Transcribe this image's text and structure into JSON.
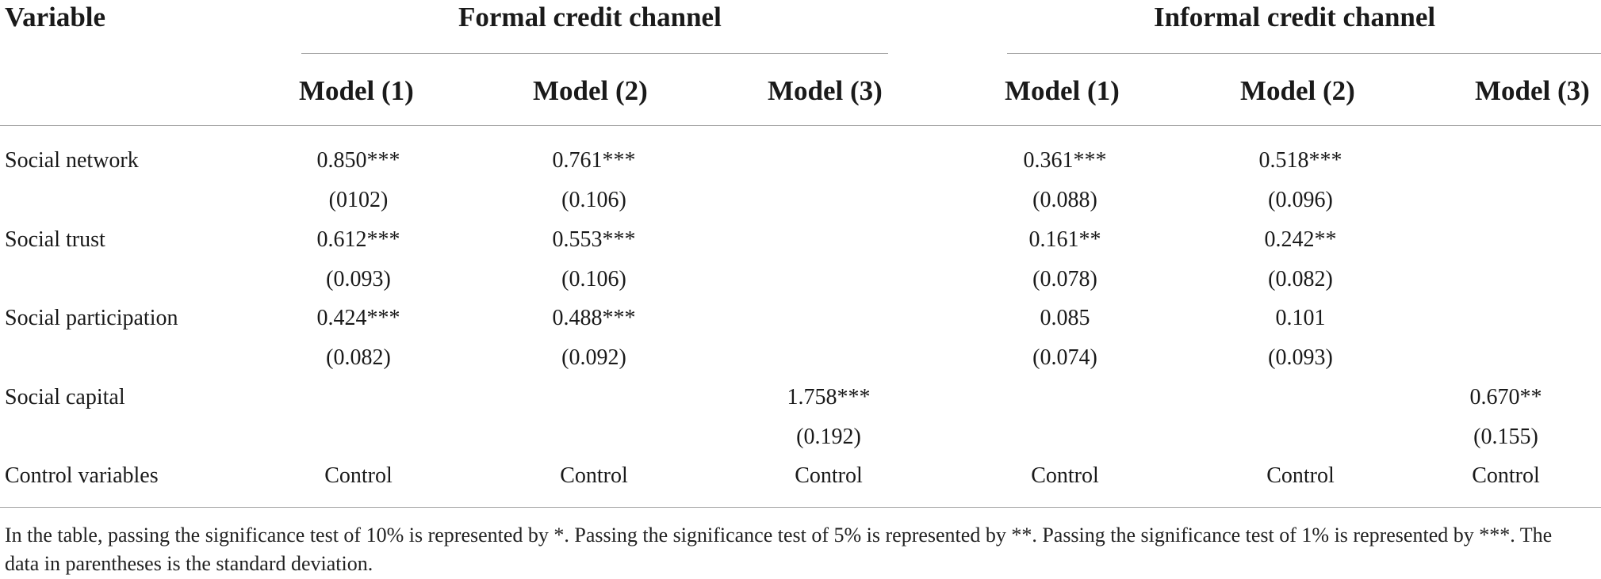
{
  "table": {
    "header": {
      "variable_label": "Variable",
      "group_formal": "Formal credit channel",
      "group_informal": "Informal credit channel",
      "models": [
        "Model (1)",
        "Model (2)",
        "Model (3)",
        "Model (1)",
        "Model (2)",
        "Model (3)"
      ]
    },
    "rows": [
      {
        "label": "Social network",
        "coef": [
          "0.850***",
          "0.761***",
          "",
          "0.361***",
          "0.518***",
          ""
        ],
        "se": [
          "(0102)",
          "(0.106)",
          "",
          "(0.088)",
          "(0.096)",
          ""
        ]
      },
      {
        "label": "Social trust",
        "coef": [
          "0.612***",
          "0.553***",
          "",
          "0.161**",
          "0.242**",
          ""
        ],
        "se": [
          "(0.093)",
          "(0.106)",
          "",
          "(0.078)",
          "(0.082)",
          ""
        ]
      },
      {
        "label": "Social participation",
        "coef": [
          "0.424***",
          "0.488***",
          "",
          "0.085",
          "0.101",
          ""
        ],
        "se": [
          "(0.082)",
          "(0.092)",
          "",
          "(0.074)",
          "(0.093)",
          ""
        ]
      },
      {
        "label": "Social capital",
        "coef": [
          "",
          "",
          "1.758***",
          "",
          "",
          "0.670**"
        ],
        "se": [
          "",
          "",
          "(0.192)",
          "",
          "",
          "(0.155)"
        ]
      }
    ],
    "control_row": {
      "label": "Control variables",
      "values": [
        "Control",
        "Control",
        "Control",
        "Control",
        "Control",
        "Control"
      ]
    },
    "footnote": "In the table, passing the significance test of 10% is represented by *. Passing the significance test of 5% is represented by **. Passing the significance test of 1% is represented by ***. The data in parentheses is the standard deviation."
  }
}
